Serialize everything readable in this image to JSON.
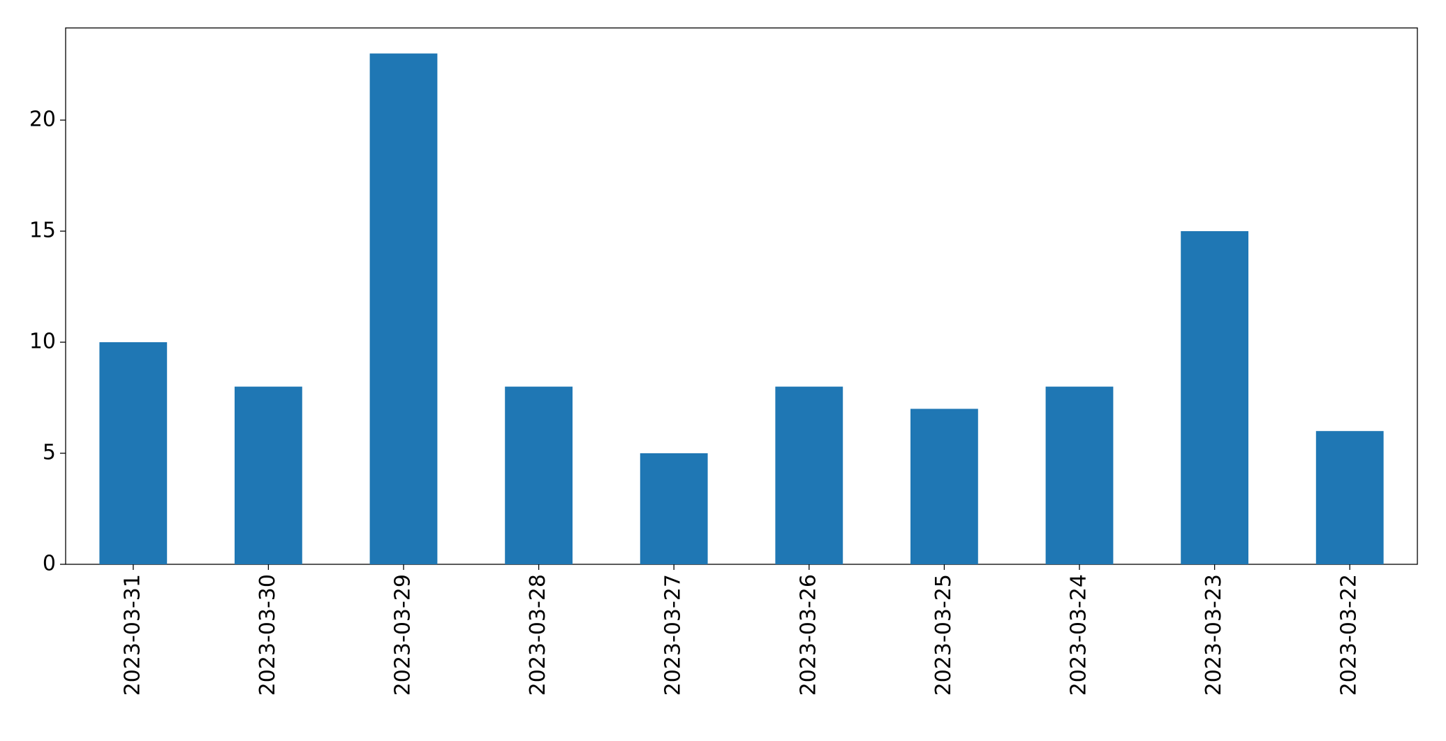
{
  "chart_data": {
    "type": "bar",
    "categories": [
      "2023-03-31",
      "2023-03-30",
      "2023-03-29",
      "2023-03-28",
      "2023-03-27",
      "2023-03-26",
      "2023-03-25",
      "2023-03-24",
      "2023-03-23",
      "2023-03-22"
    ],
    "values": [
      10,
      8,
      23,
      8,
      5,
      8,
      7,
      8,
      15,
      6
    ],
    "color": "#1f77b4",
    "ylim": [
      0,
      24.15
    ],
    "yticks": [
      0,
      5,
      10,
      15,
      20
    ],
    "grid": false
  }
}
